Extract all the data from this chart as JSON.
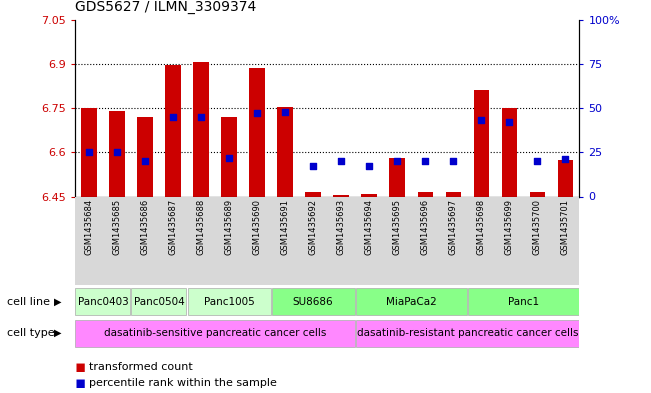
{
  "title": "GDS5627 / ILMN_3309374",
  "samples": [
    "GSM1435684",
    "GSM1435685",
    "GSM1435686",
    "GSM1435687",
    "GSM1435688",
    "GSM1435689",
    "GSM1435690",
    "GSM1435691",
    "GSM1435692",
    "GSM1435693",
    "GSM1435694",
    "GSM1435695",
    "GSM1435696",
    "GSM1435697",
    "GSM1435698",
    "GSM1435699",
    "GSM1435700",
    "GSM1435701"
  ],
  "transformed_count": [
    6.75,
    6.74,
    6.72,
    6.895,
    6.905,
    6.72,
    6.885,
    6.755,
    6.465,
    6.455,
    6.46,
    6.58,
    6.465,
    6.465,
    6.81,
    6.75,
    6.465,
    6.575
  ],
  "percentile": [
    25,
    25,
    20,
    45,
    45,
    22,
    47,
    48,
    17,
    20,
    17,
    20,
    20,
    20,
    43,
    42,
    20,
    21
  ],
  "ymin": 6.45,
  "ymax": 7.05,
  "yticks": [
    6.45,
    6.6,
    6.75,
    6.9,
    7.05
  ],
  "ytick_labels": [
    "6.45",
    "6.6",
    "6.75",
    "6.9",
    "7.05"
  ],
  "right_yticks": [
    0,
    25,
    50,
    75,
    100
  ],
  "right_ytick_labels": [
    "0",
    "25",
    "50",
    "75",
    "100%"
  ],
  "bar_color": "#cc0000",
  "dot_color": "#0000cc",
  "bar_bottom": 6.45,
  "gridline_y": [
    6.6,
    6.75,
    6.9
  ],
  "cell_line_groups": [
    {
      "label": "Panc0403",
      "start": 0,
      "end": 2,
      "color": "#ccffcc"
    },
    {
      "label": "Panc0504",
      "start": 2,
      "end": 4,
      "color": "#ccffcc"
    },
    {
      "label": "Panc1005",
      "start": 4,
      "end": 7,
      "color": "#ccffcc"
    },
    {
      "label": "SU8686",
      "start": 7,
      "end": 10,
      "color": "#88ff88"
    },
    {
      "label": "MiaPaCa2",
      "start": 10,
      "end": 14,
      "color": "#88ff88"
    },
    {
      "label": "Panc1",
      "start": 14,
      "end": 18,
      "color": "#88ff88"
    }
  ],
  "cell_type_groups": [
    {
      "label": "dasatinib-sensitive pancreatic cancer cells",
      "start": 0,
      "end": 10,
      "color": "#ff88ff"
    },
    {
      "label": "dasatinib-resistant pancreatic cancer cells",
      "start": 10,
      "end": 18,
      "color": "#ff88ff"
    }
  ],
  "figsize": [
    6.51,
    3.93
  ],
  "dpi": 100
}
